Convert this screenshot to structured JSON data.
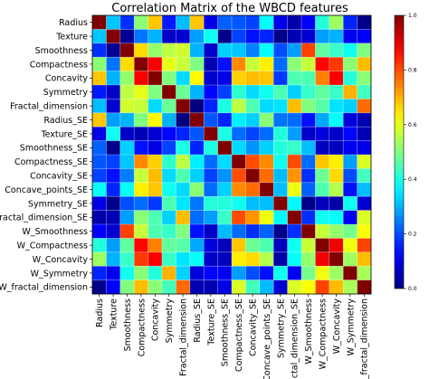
{
  "chart_data": {
    "type": "heatmap",
    "title": "Correlation Matrix of the WBCD features",
    "labels": [
      "Radius",
      "Texture",
      "Smoothness",
      "Compactness",
      "Concavity",
      "Symmetry",
      "Fractal_dimension",
      "Radius_SE",
      "Texture_SE",
      "Smoothness_SE",
      "Compactness_SE",
      "Concavity_SE",
      "Concave_points_SE",
      "Symmetry_SE",
      "Fractal_dimension_SE",
      "W_Smoothness",
      "W_Compactness",
      "W_Concavity",
      "W_Symmetry",
      "W_fractal_dimension"
    ],
    "colorscale": "jet",
    "vrange": [
      0.0,
      1.0
    ],
    "colorbar_ticks": [
      "0.0",
      "0.2",
      "0.4",
      "0.6",
      "0.8",
      "1.0"
    ],
    "grid": true,
    "values": [
      [
        1.0,
        0.32,
        0.17,
        0.51,
        0.68,
        0.15,
        0.31,
        0.68,
        0.1,
        0.22,
        0.21,
        0.19,
        0.38,
        0.1,
        0.04,
        0.12,
        0.41,
        0.53,
        0.16,
        0.01
      ],
      [
        0.32,
        1.0,
        0.02,
        0.24,
        0.3,
        0.07,
        0.08,
        0.28,
        0.39,
        0.01,
        0.19,
        0.14,
        0.16,
        0.01,
        0.05,
        0.08,
        0.28,
        0.3,
        0.11,
        0.12
      ],
      [
        0.17,
        0.02,
        1.0,
        0.66,
        0.52,
        0.56,
        0.58,
        0.3,
        0.07,
        0.33,
        0.32,
        0.25,
        0.38,
        0.2,
        0.28,
        0.81,
        0.47,
        0.43,
        0.39,
        0.5
      ],
      [
        0.51,
        0.24,
        0.66,
        1.0,
        0.88,
        0.6,
        0.57,
        0.5,
        0.05,
        0.14,
        0.74,
        0.57,
        0.64,
        0.23,
        0.51,
        0.57,
        0.87,
        0.82,
        0.51,
        0.69
      ],
      [
        0.68,
        0.3,
        0.52,
        0.88,
        1.0,
        0.5,
        0.34,
        0.63,
        0.08,
        0.1,
        0.67,
        0.69,
        0.68,
        0.18,
        0.45,
        0.45,
        0.75,
        0.88,
        0.41,
        0.51
      ],
      [
        0.15,
        0.07,
        0.56,
        0.6,
        0.5,
        1.0,
        0.48,
        0.3,
        0.13,
        0.19,
        0.42,
        0.34,
        0.39,
        0.45,
        0.33,
        0.43,
        0.47,
        0.43,
        0.7,
        0.44
      ],
      [
        0.31,
        0.08,
        0.58,
        0.57,
        0.34,
        0.48,
        1.0,
        0.0,
        0.16,
        0.4,
        0.56,
        0.45,
        0.34,
        0.35,
        0.69,
        0.5,
        0.46,
        0.35,
        0.33,
        0.77
      ],
      [
        0.68,
        0.28,
        0.3,
        0.5,
        0.63,
        0.3,
        0.0,
        1.0,
        0.21,
        0.16,
        0.36,
        0.33,
        0.51,
        0.24,
        0.23,
        0.14,
        0.29,
        0.38,
        0.09,
        0.05
      ],
      [
        0.1,
        0.39,
        0.07,
        0.05,
        0.08,
        0.13,
        0.16,
        0.21,
        1.0,
        0.4,
        0.23,
        0.19,
        0.23,
        0.41,
        0.28,
        0.07,
        0.09,
        0.07,
        0.13,
        0.05
      ],
      [
        0.22,
        0.01,
        0.33,
        0.14,
        0.1,
        0.19,
        0.4,
        0.16,
        0.4,
        1.0,
        0.34,
        0.27,
        0.33,
        0.41,
        0.43,
        0.31,
        0.06,
        0.06,
        0.11,
        0.1
      ],
      [
        0.21,
        0.19,
        0.32,
        0.74,
        0.67,
        0.42,
        0.56,
        0.36,
        0.23,
        0.34,
        1.0,
        0.8,
        0.74,
        0.39,
        0.8,
        0.23,
        0.68,
        0.64,
        0.28,
        0.59
      ],
      [
        0.19,
        0.14,
        0.25,
        0.57,
        0.69,
        0.34,
        0.45,
        0.33,
        0.19,
        0.27,
        0.8,
        1.0,
        0.77,
        0.31,
        0.73,
        0.17,
        0.48,
        0.66,
        0.2,
        0.44
      ],
      [
        0.38,
        0.16,
        0.38,
        0.64,
        0.68,
        0.39,
        0.34,
        0.51,
        0.23,
        0.33,
        0.74,
        0.77,
        1.0,
        0.31,
        0.61,
        0.22,
        0.45,
        0.55,
        0.14,
        0.31
      ],
      [
        0.1,
        0.01,
        0.2,
        0.23,
        0.18,
        0.45,
        0.35,
        0.24,
        0.41,
        0.41,
        0.39,
        0.31,
        0.31,
        1.0,
        0.37,
        0.01,
        0.06,
        0.04,
        0.39,
        0.08
      ],
      [
        0.04,
        0.05,
        0.28,
        0.51,
        0.45,
        0.33,
        0.69,
        0.23,
        0.28,
        0.43,
        0.8,
        0.73,
        0.61,
        0.37,
        1.0,
        0.17,
        0.39,
        0.38,
        0.11,
        0.59
      ],
      [
        0.12,
        0.08,
        0.81,
        0.57,
        0.45,
        0.43,
        0.5,
        0.14,
        0.07,
        0.31,
        0.23,
        0.17,
        0.22,
        0.01,
        0.17,
        1.0,
        0.57,
        0.52,
        0.49,
        0.62
      ],
      [
        0.41,
        0.28,
        0.47,
        0.87,
        0.75,
        0.47,
        0.46,
        0.29,
        0.09,
        0.06,
        0.68,
        0.48,
        0.45,
        0.06,
        0.39,
        0.57,
        1.0,
        0.89,
        0.61,
        0.81
      ],
      [
        0.53,
        0.3,
        0.43,
        0.82,
        0.88,
        0.43,
        0.35,
        0.38,
        0.07,
        0.06,
        0.64,
        0.66,
        0.55,
        0.04,
        0.38,
        0.52,
        0.89,
        1.0,
        0.53,
        0.69
      ],
      [
        0.16,
        0.11,
        0.39,
        0.51,
        0.41,
        0.7,
        0.33,
        0.09,
        0.13,
        0.11,
        0.28,
        0.2,
        0.14,
        0.39,
        0.11,
        0.49,
        0.61,
        0.53,
        1.0,
        0.54
      ],
      [
        0.01,
        0.12,
        0.5,
        0.69,
        0.51,
        0.44,
        0.77,
        0.05,
        0.05,
        0.1,
        0.59,
        0.44,
        0.31,
        0.08,
        0.59,
        0.62,
        0.81,
        0.69,
        0.54,
        1.0
      ]
    ]
  }
}
